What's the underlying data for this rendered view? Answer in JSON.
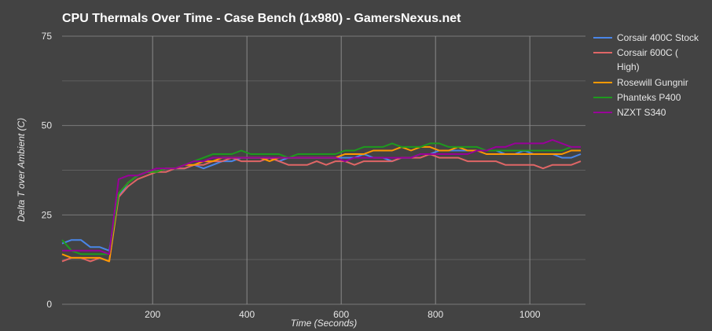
{
  "chart_data": {
    "type": "line",
    "title": "CPU Thermals Over Time - Case Bench (1x980) - GamersNexus.net",
    "xlabel": "Time (Seconds)",
    "ylabel": "Delta T over Ambient (C)",
    "xlim": [
      8,
      1118
    ],
    "ylim": [
      0,
      75
    ],
    "xticks": [
      200,
      400,
      600,
      800,
      1000
    ],
    "yticks": [
      0,
      25,
      50,
      75
    ],
    "xtick_labels": [
      "200",
      "400",
      "600",
      "800",
      "1000"
    ],
    "ytick_labels": [
      "0",
      "25",
      "50",
      "75"
    ],
    "grid": true,
    "legend_position": "right",
    "background": "#434343",
    "x": [
      8,
      28,
      48,
      68,
      88,
      108,
      128,
      148,
      168,
      188,
      208,
      228,
      248,
      268,
      288,
      308,
      328,
      348,
      368,
      388,
      408,
      428,
      448,
      468,
      488,
      508,
      528,
      548,
      568,
      588,
      608,
      628,
      648,
      668,
      688,
      708,
      728,
      748,
      768,
      788,
      808,
      828,
      848,
      868,
      888,
      908,
      928,
      948,
      968,
      988,
      1008,
      1028,
      1048,
      1068,
      1088,
      1108
    ],
    "series": [
      {
        "name": "Corsair 400C Stock",
        "color": "#4a86e8",
        "values": [
          17,
          18,
          18,
          16,
          16,
          15,
          30,
          34,
          36,
          37,
          37,
          38,
          38,
          38,
          39,
          38,
          39,
          40,
          40,
          41,
          41,
          41,
          41,
          40,
          41,
          41,
          41,
          41,
          41,
          41,
          41,
          41,
          42,
          41,
          41,
          40,
          41,
          41,
          42,
          42,
          43,
          43,
          43,
          43,
          43,
          43,
          43,
          42,
          42,
          43,
          42,
          42,
          42,
          41,
          41,
          42
        ]
      },
      {
        "name": "Corsair 600C ( High)",
        "legend_lines": [
          "Corsair 600C (",
          "High)"
        ],
        "color": "#e06666",
        "values": [
          12,
          13,
          13,
          12,
          13,
          12,
          30,
          33,
          35,
          36,
          37,
          37,
          38,
          38,
          39,
          39,
          40,
          40,
          41,
          40,
          40,
          40,
          41,
          40,
          39,
          39,
          39,
          40,
          39,
          40,
          40,
          39,
          40,
          40,
          40,
          40,
          41,
          41,
          41,
          42,
          41,
          41,
          41,
          40,
          40,
          40,
          40,
          39,
          39,
          39,
          39,
          38,
          39,
          39,
          39,
          40
        ]
      },
      {
        "name": "Rosewill Gungnir",
        "color": "#ff9900",
        "values": [
          14,
          13,
          13,
          13,
          13,
          12,
          31,
          34,
          36,
          37,
          37,
          38,
          38,
          39,
          39,
          40,
          40,
          41,
          41,
          41,
          41,
          41,
          40,
          41,
          41,
          41,
          41,
          41,
          41,
          41,
          42,
          42,
          42,
          43,
          43,
          43,
          44,
          43,
          44,
          44,
          43,
          43,
          44,
          43,
          43,
          42,
          42,
          42,
          42,
          42,
          42,
          42,
          42,
          42,
          43,
          43
        ]
      },
      {
        "name": "Phanteks P400",
        "color": "#1e9a1e",
        "values": [
          18,
          15,
          14,
          14,
          14,
          14,
          31,
          34,
          36,
          37,
          37,
          38,
          38,
          39,
          40,
          41,
          42,
          42,
          42,
          43,
          42,
          42,
          42,
          42,
          41,
          42,
          42,
          42,
          42,
          42,
          43,
          43,
          44,
          44,
          44,
          45,
          44,
          44,
          44,
          45,
          45,
          44,
          44,
          44,
          44,
          43,
          43,
          43,
          43,
          43,
          43,
          43,
          43,
          43,
          44,
          44
        ]
      },
      {
        "name": "NZXT S340",
        "color": "#990099",
        "values": [
          15,
          15,
          15,
          15,
          15,
          14,
          35,
          36,
          36,
          37,
          38,
          38,
          38,
          39,
          40,
          40,
          41,
          41,
          41,
          41,
          41,
          41,
          41,
          41,
          41,
          41,
          41,
          41,
          41,
          41,
          40,
          41,
          41,
          41,
          41,
          41,
          41,
          41,
          42,
          42,
          42,
          42,
          42,
          42,
          43,
          43,
          44,
          44,
          45,
          45,
          45,
          45,
          46,
          45,
          44,
          44
        ]
      }
    ]
  }
}
